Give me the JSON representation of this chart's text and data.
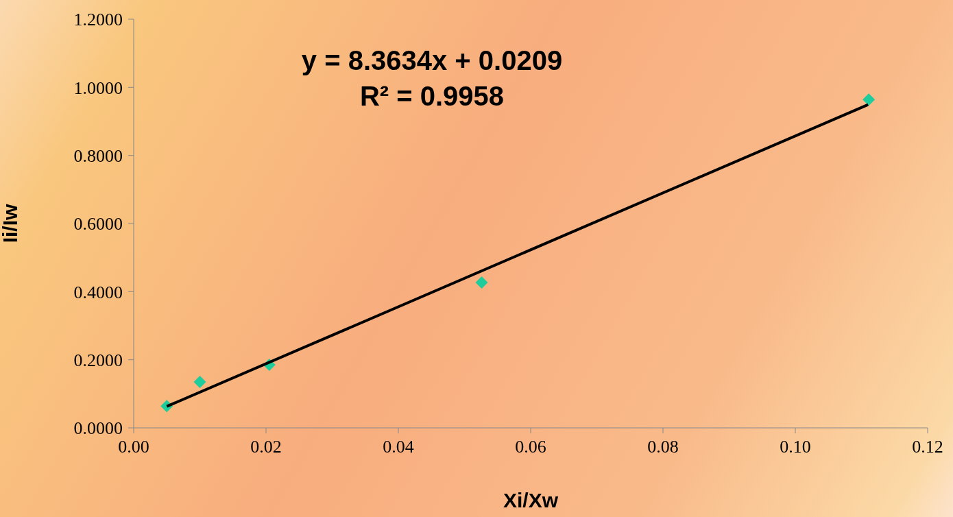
{
  "chart_data": {
    "type": "scatter",
    "xlabel": "Xi/Xw",
    "ylabel": "Ii/Iw",
    "annotations": [
      "y = 8.3634x + 0.0209",
      "R² = 0.9958"
    ],
    "xlim": [
      0,
      0.12
    ],
    "xticks": [
      {
        "value": 0,
        "label": "0.00"
      },
      {
        "value": 0.02,
        "label": "0.02"
      },
      {
        "value": 0.04,
        "label": "0.04"
      },
      {
        "value": 0.06,
        "label": "0.06"
      },
      {
        "value": 0.08,
        "label": "0.08"
      },
      {
        "value": 0.1,
        "label": "0.10"
      },
      {
        "value": 0.12,
        "label": "0.12"
      }
    ],
    "ylim": [
      0,
      1.2
    ],
    "yticks": [
      {
        "value": 0,
        "label": "0.0000"
      },
      {
        "value": 0.2,
        "label": "0.2000"
      },
      {
        "value": 0.4,
        "label": "0.4000"
      },
      {
        "value": 0.6,
        "label": "0.6000"
      },
      {
        "value": 0.8,
        "label": "0.8000"
      },
      {
        "value": 1,
        "label": "1.0000"
      },
      {
        "value": 1.2,
        "label": "1.2000"
      }
    ],
    "grid": false,
    "legend": false,
    "series": [
      {
        "color": "#1fcc9c",
        "marker": "diamond",
        "x": [
          0.005,
          0.01,
          0.0205,
          0.0526,
          0.1111
        ],
        "values": [
          0.064,
          0.135,
          0.185,
          0.427,
          0.964
        ]
      },
      {
        "type": "line",
        "color": "#000000",
        "marker": "none",
        "line_style": "solid",
        "x": [
          0.005,
          0.111
        ],
        "values": [
          0.063,
          0.949
        ]
      }
    ]
  }
}
